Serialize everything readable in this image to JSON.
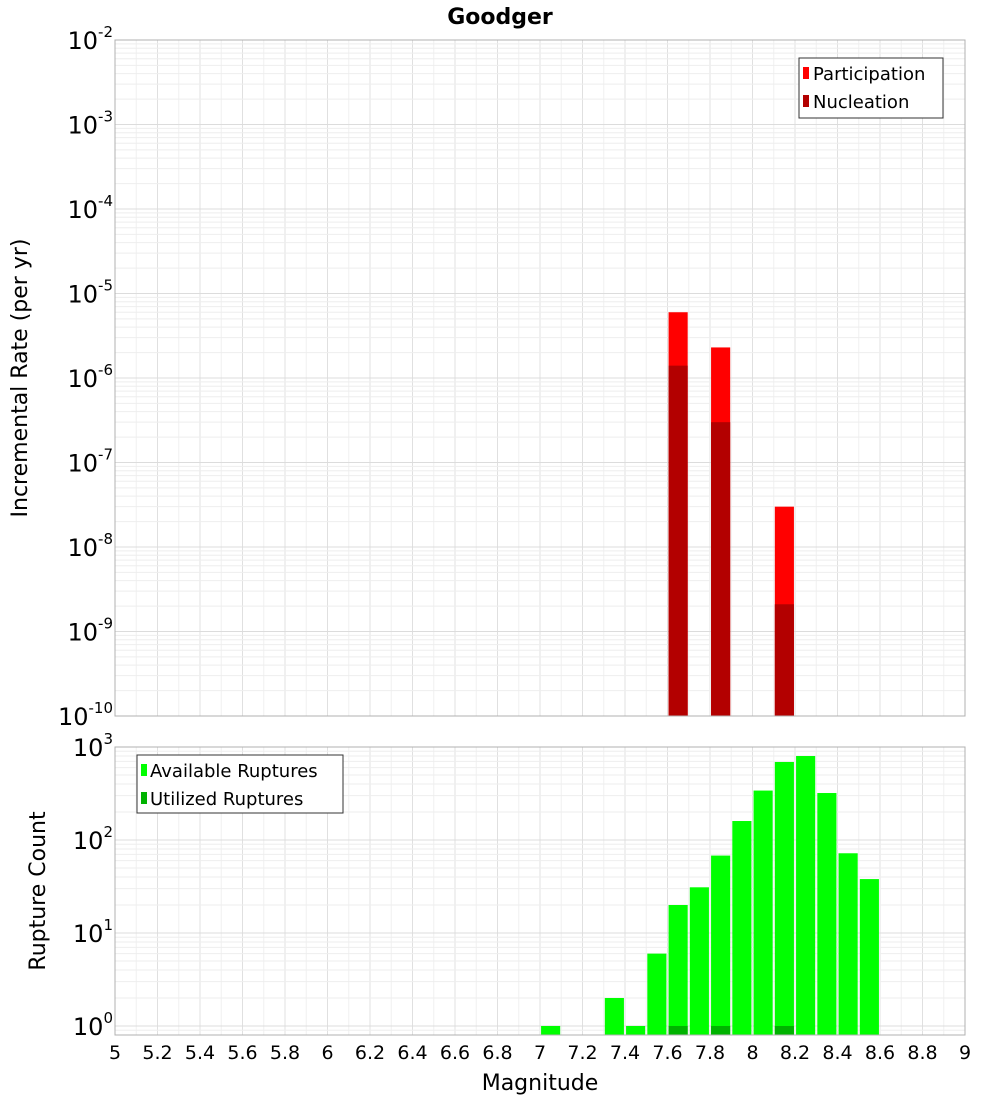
{
  "chart_data": [
    {
      "type": "bar",
      "title": "Goodger",
      "xlabel": "",
      "ylabel": "Incremental Rate (per yr)",
      "yscale": "log",
      "ylim": [
        1e-10,
        0.01
      ],
      "xlim": [
        5,
        9
      ],
      "grid": true,
      "legend": "top-right",
      "bar_width": 0.09,
      "series": [
        {
          "name": "Participation",
          "color": "#ff0000",
          "points": [
            {
              "x": 7.65,
              "y": 6e-06
            },
            {
              "x": 7.85,
              "y": 2.3e-06
            },
            {
              "x": 8.15,
              "y": 3e-08
            }
          ]
        },
        {
          "name": "Nucleation",
          "color": "#b30000",
          "points": [
            {
              "x": 7.65,
              "y": 1.4e-06
            },
            {
              "x": 7.85,
              "y": 3e-07
            },
            {
              "x": 8.15,
              "y": 2.1e-09
            }
          ]
        }
      ]
    },
    {
      "type": "bar",
      "xlabel": "Magnitude",
      "ylabel": "Rupture Count",
      "yscale": "log",
      "ylim": [
        0.8,
        1000
      ],
      "xlim": [
        5,
        9
      ],
      "grid": true,
      "legend": "top-left",
      "bar_width": 0.09,
      "xticks": [
        "5",
        "5.2",
        "5.4",
        "5.6",
        "5.8",
        "6",
        "6.2",
        "6.4",
        "6.6",
        "6.8",
        "7",
        "7.2",
        "7.4",
        "7.6",
        "7.8",
        "8",
        "8.2",
        "8.4",
        "8.6",
        "8.8",
        "9"
      ],
      "series": [
        {
          "name": "Available Ruptures",
          "color": "#00ff00",
          "points": [
            {
              "x": 7.05,
              "y": 1
            },
            {
              "x": 7.35,
              "y": 2
            },
            {
              "x": 7.45,
              "y": 1
            },
            {
              "x": 7.55,
              "y": 6
            },
            {
              "x": 7.65,
              "y": 20
            },
            {
              "x": 7.75,
              "y": 31
            },
            {
              "x": 7.85,
              "y": 68
            },
            {
              "x": 7.95,
              "y": 160
            },
            {
              "x": 8.05,
              "y": 340
            },
            {
              "x": 8.15,
              "y": 690
            },
            {
              "x": 8.25,
              "y": 800
            },
            {
              "x": 8.35,
              "y": 320
            },
            {
              "x": 8.45,
              "y": 72
            },
            {
              "x": 8.55,
              "y": 38
            }
          ]
        },
        {
          "name": "Utilized Ruptures",
          "color": "#00b300",
          "points": [
            {
              "x": 7.65,
              "y": 1
            },
            {
              "x": 7.85,
              "y": 1
            },
            {
              "x": 8.15,
              "y": 1
            }
          ]
        }
      ]
    }
  ]
}
